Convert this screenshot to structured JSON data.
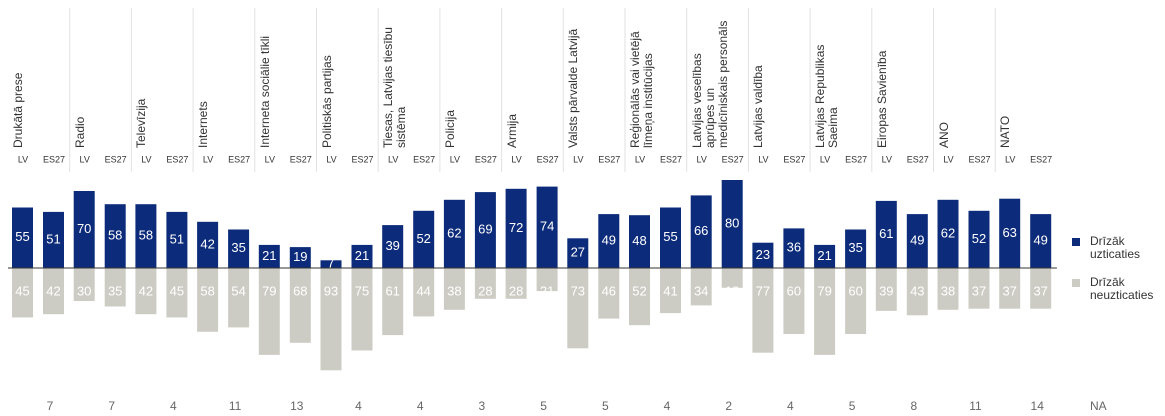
{
  "chart_data": {
    "type": "diverging-bar",
    "categories": [
      "Drukātā prese",
      "Radio",
      "Televīzija",
      "Internets",
      "Interneta sociālie tīkli",
      "Politiskās partijas",
      "Tiesas, Latvijas tiesību sistēma",
      "Policija",
      "Armija",
      "Valsts pārvalde Latvijā",
      "Reģionālās vai vietējā līmeņa institūcijas",
      "Latvijas veselības aprūpes un medicīniskais personāls",
      "Latvijas valdība",
      "Latvijas Republikas Saeima",
      "Eiropas Savienība",
      "ANO",
      "NATO"
    ],
    "subgroups": [
      "LV",
      "ES27"
    ],
    "ylim": [
      -100,
      100
    ],
    "series": [
      {
        "name": "Drīzāk uzticaties",
        "color": "#0c2b7a",
        "direction": "up",
        "values": [
          [
            55,
            51
          ],
          [
            70,
            58
          ],
          [
            58,
            51
          ],
          [
            42,
            35
          ],
          [
            21,
            19
          ],
          [
            7,
            21
          ],
          [
            39,
            52
          ],
          [
            62,
            69
          ],
          [
            72,
            74
          ],
          [
            27,
            49
          ],
          [
            48,
            55
          ],
          [
            66,
            80
          ],
          [
            23,
            36
          ],
          [
            21,
            35
          ],
          [
            61,
            49
          ],
          [
            62,
            52
          ],
          [
            63,
            49
          ]
        ]
      },
      {
        "name": "Drīzāk neuzticaties",
        "color": "#cdccc4",
        "direction": "down",
        "values": [
          [
            45,
            42
          ],
          [
            30,
            35
          ],
          [
            42,
            45
          ],
          [
            58,
            54
          ],
          [
            79,
            68
          ],
          [
            93,
            75
          ],
          [
            61,
            44
          ],
          [
            38,
            28
          ],
          [
            28,
            21
          ],
          [
            73,
            46
          ],
          [
            52,
            41
          ],
          [
            34,
            18
          ],
          [
            77,
            60
          ],
          [
            79,
            60
          ],
          [
            39,
            43
          ],
          [
            38,
            37
          ],
          [
            37,
            37
          ]
        ]
      }
    ],
    "na": {
      "label": "NA",
      "values": [
        7,
        7,
        4,
        11,
        13,
        4,
        4,
        3,
        5,
        5,
        4,
        2,
        4,
        5,
        8,
        11,
        14
      ]
    }
  }
}
